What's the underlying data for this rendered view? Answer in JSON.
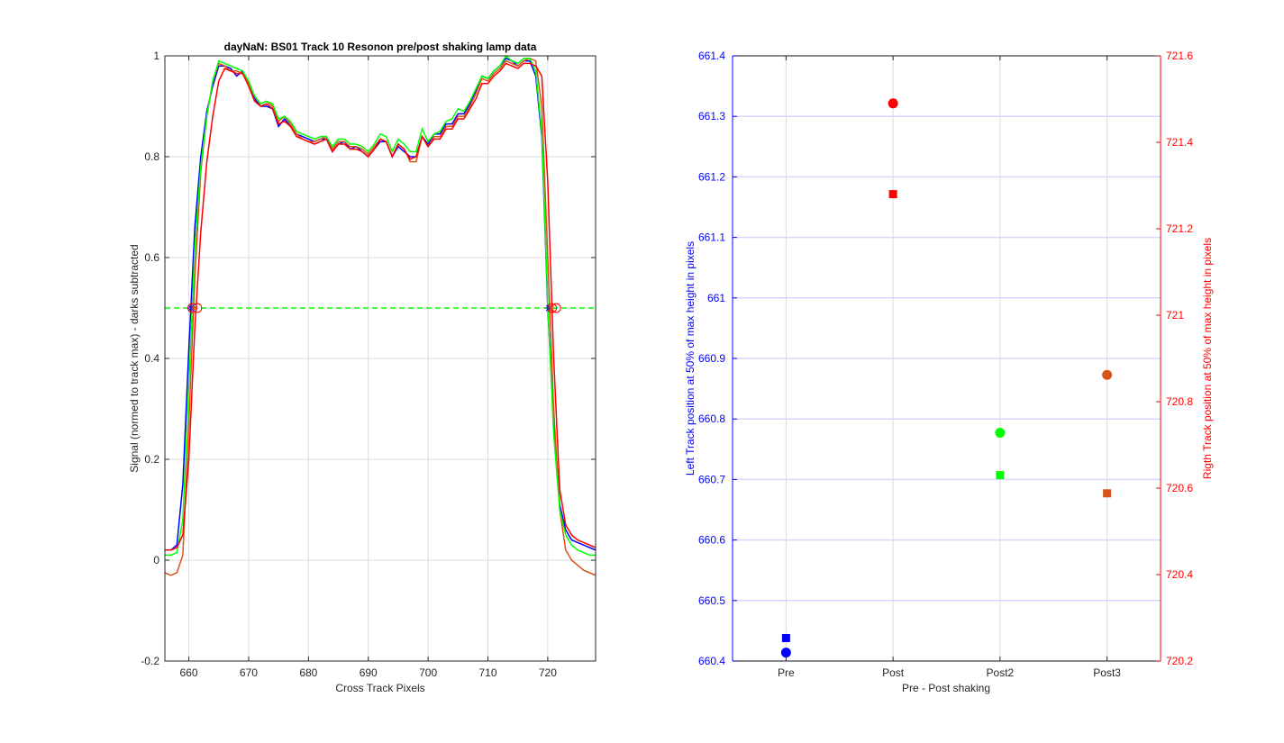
{
  "chart_data": [
    {
      "type": "line",
      "title": "dayNaN: BS01  Track 10 Resonon pre/post shaking lamp data",
      "xlabel": "Cross Track Pixels",
      "ylabel": "Signal (normed to track max) - darks subtracted",
      "xlim": [
        656,
        728
      ],
      "ylim": [
        -0.2,
        1
      ],
      "xticks": [
        660,
        670,
        680,
        690,
        700,
        710,
        720
      ],
      "yticks": [
        -0.2,
        0,
        0.2,
        0.4,
        0.6,
        0.8,
        1
      ],
      "ytick_labels": [
        "-0.2",
        "0",
        "0.2",
        "0.4",
        "0.6",
        "0.8",
        "1"
      ],
      "grid": true,
      "series": [
        {
          "color": "#0000ff",
          "x": [
            656,
            657,
            658,
            659,
            660,
            661,
            662,
            663,
            664,
            665,
            666,
            667,
            668,
            669,
            670,
            671,
            672,
            673,
            674,
            675,
            676,
            677,
            678,
            679,
            680,
            681,
            682,
            683,
            684,
            685,
            686,
            687,
            688,
            689,
            690,
            691,
            692,
            693,
            694,
            695,
            696,
            697,
            698,
            699,
            700,
            701,
            702,
            703,
            704,
            705,
            706,
            707,
            708,
            709,
            710,
            711,
            712,
            713,
            714,
            715,
            716,
            717,
            718,
            719,
            720,
            721,
            722,
            723,
            724,
            725,
            726,
            727,
            728
          ],
          "y": [
            0.02,
            0.02,
            0.03,
            0.15,
            0.42,
            0.66,
            0.8,
            0.89,
            0.94,
            0.98,
            0.98,
            0.975,
            0.96,
            0.97,
            0.945,
            0.915,
            0.9,
            0.9,
            0.895,
            0.86,
            0.875,
            0.86,
            0.845,
            0.84,
            0.835,
            0.83,
            0.835,
            0.835,
            0.81,
            0.825,
            0.83,
            0.815,
            0.82,
            0.81,
            0.8,
            0.815,
            0.83,
            0.83,
            0.8,
            0.82,
            0.81,
            0.8,
            0.8,
            0.84,
            0.825,
            0.845,
            0.845,
            0.865,
            0.865,
            0.885,
            0.885,
            0.905,
            0.93,
            0.96,
            0.955,
            0.97,
            0.98,
            0.995,
            0.99,
            0.98,
            0.99,
            0.99,
            0.96,
            0.84,
            0.5,
            0.28,
            0.11,
            0.06,
            0.04,
            0.035,
            0.03,
            0.025,
            0.02
          ]
        },
        {
          "color": "#d95319",
          "x": [
            656,
            657,
            658,
            659,
            660,
            661,
            662,
            663,
            664,
            665,
            666,
            667,
            668,
            669,
            670,
            671,
            672,
            673,
            674,
            675,
            676,
            677,
            678,
            679,
            680,
            681,
            682,
            683,
            684,
            685,
            686,
            687,
            688,
            689,
            690,
            691,
            692,
            693,
            694,
            695,
            696,
            697,
            698,
            699,
            700,
            701,
            702,
            703,
            704,
            705,
            706,
            707,
            708,
            709,
            710,
            711,
            712,
            713,
            714,
            715,
            716,
            717,
            718,
            719,
            720,
            721,
            722,
            723,
            724,
            725,
            726,
            727,
            728
          ],
          "y": [
            -0.025,
            -0.03,
            -0.025,
            0.01,
            0.27,
            0.56,
            0.77,
            0.88,
            0.95,
            0.985,
            0.98,
            0.97,
            0.97,
            0.965,
            0.945,
            0.92,
            0.905,
            0.91,
            0.9,
            0.87,
            0.88,
            0.865,
            0.845,
            0.835,
            0.83,
            0.83,
            0.835,
            0.84,
            0.815,
            0.83,
            0.83,
            0.82,
            0.82,
            0.815,
            0.805,
            0.82,
            0.835,
            0.83,
            0.8,
            0.825,
            0.815,
            0.79,
            0.79,
            0.84,
            0.82,
            0.84,
            0.84,
            0.86,
            0.86,
            0.88,
            0.88,
            0.9,
            0.925,
            0.955,
            0.95,
            0.965,
            0.975,
            0.99,
            0.985,
            0.98,
            0.99,
            0.995,
            0.99,
            0.9,
            0.6,
            0.3,
            0.1,
            0.02,
            0.0,
            -0.01,
            -0.02,
            -0.025,
            -0.03
          ]
        },
        {
          "color": "#00ff00",
          "x": [
            656,
            657,
            658,
            659,
            660,
            661,
            662,
            663,
            664,
            665,
            666,
            667,
            668,
            669,
            670,
            671,
            672,
            673,
            674,
            675,
            676,
            677,
            678,
            679,
            680,
            681,
            682,
            683,
            684,
            685,
            686,
            687,
            688,
            689,
            690,
            691,
            692,
            693,
            694,
            695,
            696,
            697,
            698,
            699,
            700,
            701,
            702,
            703,
            704,
            705,
            706,
            707,
            708,
            709,
            710,
            711,
            712,
            713,
            714,
            715,
            716,
            717,
            718,
            719,
            720,
            721,
            722,
            723,
            724,
            725,
            726,
            727,
            728
          ],
          "y": [
            0.01,
            0.01,
            0.015,
            0.08,
            0.35,
            0.62,
            0.78,
            0.88,
            0.95,
            0.99,
            0.985,
            0.98,
            0.975,
            0.97,
            0.95,
            0.92,
            0.905,
            0.91,
            0.905,
            0.875,
            0.88,
            0.87,
            0.85,
            0.845,
            0.84,
            0.835,
            0.84,
            0.84,
            0.82,
            0.835,
            0.835,
            0.825,
            0.825,
            0.82,
            0.81,
            0.825,
            0.845,
            0.84,
            0.81,
            0.835,
            0.825,
            0.81,
            0.81,
            0.855,
            0.83,
            0.845,
            0.85,
            0.87,
            0.875,
            0.895,
            0.89,
            0.91,
            0.935,
            0.96,
            0.955,
            0.97,
            0.98,
            1.0,
            0.99,
            0.985,
            0.995,
            0.995,
            0.97,
            0.85,
            0.51,
            0.25,
            0.1,
            0.05,
            0.03,
            0.02,
            0.015,
            0.01,
            0.01
          ]
        },
        {
          "color": "#ff0000",
          "x": [
            656,
            657,
            658,
            659,
            660,
            661,
            662,
            663,
            664,
            665,
            666,
            667,
            668,
            669,
            670,
            671,
            672,
            673,
            674,
            675,
            676,
            677,
            678,
            679,
            680,
            681,
            682,
            683,
            684,
            685,
            686,
            687,
            688,
            689,
            690,
            691,
            692,
            693,
            694,
            695,
            696,
            697,
            698,
            699,
            700,
            701,
            702,
            703,
            704,
            705,
            706,
            707,
            708,
            709,
            710,
            711,
            712,
            713,
            714,
            715,
            716,
            717,
            718,
            719,
            720,
            721,
            722,
            723,
            724,
            725,
            726,
            727,
            728
          ],
          "y": [
            0.02,
            0.02,
            0.025,
            0.05,
            0.2,
            0.46,
            0.65,
            0.79,
            0.88,
            0.95,
            0.975,
            0.97,
            0.965,
            0.965,
            0.94,
            0.91,
            0.9,
            0.905,
            0.895,
            0.865,
            0.87,
            0.86,
            0.84,
            0.835,
            0.83,
            0.825,
            0.83,
            0.835,
            0.81,
            0.825,
            0.825,
            0.815,
            0.815,
            0.81,
            0.8,
            0.815,
            0.835,
            0.83,
            0.8,
            0.825,
            0.815,
            0.795,
            0.8,
            0.84,
            0.82,
            0.835,
            0.835,
            0.855,
            0.855,
            0.875,
            0.875,
            0.895,
            0.915,
            0.945,
            0.945,
            0.96,
            0.97,
            0.985,
            0.98,
            0.975,
            0.985,
            0.985,
            0.98,
            0.96,
            0.75,
            0.4,
            0.14,
            0.07,
            0.05,
            0.04,
            0.035,
            0.03,
            0.025
          ]
        },
        {
          "color": "#00ff00",
          "dash": true,
          "x": [
            656,
            728
          ],
          "y": [
            0.5,
            0.5
          ]
        }
      ],
      "markers": [
        {
          "shape": "circle",
          "color": "#ff0000",
          "x": 660.6,
          "y": 0.5
        },
        {
          "shape": "circle",
          "color": "#ff0000",
          "x": 661.4,
          "y": 0.5
        },
        {
          "shape": "circle",
          "color": "#ff0000",
          "x": 720.7,
          "y": 0.5
        },
        {
          "shape": "circle",
          "color": "#ff0000",
          "x": 721.4,
          "y": 0.5
        },
        {
          "shape": "star",
          "color": "#0000ff",
          "x": 660.4,
          "y": 0.5
        },
        {
          "shape": "star",
          "color": "#d95319",
          "x": 660.9,
          "y": 0.5
        },
        {
          "shape": "star",
          "color": "#0000ff",
          "x": 720.2,
          "y": 0.5
        },
        {
          "shape": "star",
          "color": "#d95319",
          "x": 720.6,
          "y": 0.5
        }
      ]
    },
    {
      "type": "scatter",
      "xlabel": "Pre - Post shaking",
      "ylabel_left": "Left Track position at 50% of max height in pixels",
      "ylabel_right": "Rigth Track position at 50% of max height in pixels",
      "categories": [
        "Pre",
        "Post",
        "Post2",
        "Post3"
      ],
      "xlim": [
        0.5,
        4.5
      ],
      "ylim_left": [
        660.4,
        661.4
      ],
      "ylim_right": [
        720.2,
        721.6
      ],
      "yticks_left": [
        660.4,
        660.5,
        660.6,
        660.7,
        660.8,
        660.9,
        661,
        661.1,
        661.2,
        661.3,
        661.4
      ],
      "ytick_labels_left": [
        "660.4",
        "660.5",
        "660.6",
        "660.7",
        "660.8",
        "660.9",
        "661",
        "661.1",
        "661.2",
        "661.3",
        "661.4"
      ],
      "yticks_right": [
        720.2,
        720.4,
        720.6,
        720.8,
        721,
        721.2,
        721.4,
        721.6
      ],
      "ytick_labels_right": [
        "720.2",
        "720.4",
        "720.6",
        "720.8",
        "721",
        "721.2",
        "721.4",
        "721.6"
      ],
      "left_axis_color": "#0000ff",
      "right_axis_color": "#ff0000",
      "grid": true,
      "points": [
        {
          "category": "Pre",
          "x": 1,
          "y": 660.414,
          "axis": "left",
          "shape": "circle",
          "color": "#0000ff"
        },
        {
          "category": "Pre",
          "x": 1,
          "y": 660.438,
          "axis": "left",
          "shape": "square",
          "color": "#0000ff"
        },
        {
          "category": "Post",
          "x": 2,
          "y": 721.49,
          "axis": "right",
          "shape": "circle",
          "color": "#ff0000"
        },
        {
          "category": "Post",
          "x": 2,
          "y": 721.28,
          "axis": "right",
          "shape": "square",
          "color": "#ff0000"
        },
        {
          "category": "Post2",
          "x": 3,
          "y": 720.728,
          "axis": "right",
          "shape": "circle",
          "color": "#00ff00"
        },
        {
          "category": "Post2",
          "x": 3,
          "y": 720.63,
          "axis": "right",
          "shape": "square",
          "color": "#00ff00"
        },
        {
          "category": "Post3",
          "x": 4,
          "y": 720.862,
          "axis": "right",
          "shape": "circle",
          "color": "#d95319"
        },
        {
          "category": "Post3",
          "x": 4,
          "y": 720.588,
          "axis": "right",
          "shape": "square",
          "color": "#d95319"
        }
      ]
    }
  ]
}
